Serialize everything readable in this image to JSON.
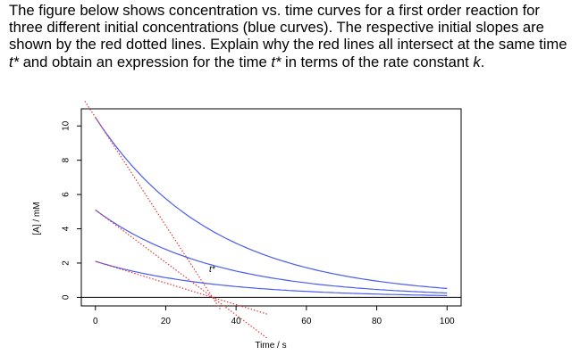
{
  "question": {
    "p1": "The figure below shows concentration vs. time curves for a first order reaction for three different initial concentrations (blue curves).  The respective initial slopes are shown by the red dotted lines.  Explain why the red lines all intersect at the same time ",
    "t1": "t*",
    "p2": " and obtain an expression for the time ",
    "t2": "t*",
    "p3": " in terms of the rate constant ",
    "k": "k",
    "p4": "."
  },
  "chart_data": {
    "type": "line",
    "xlabel": "Time / s",
    "ylabel": "[A] / mM",
    "xlim": [
      -4,
      104
    ],
    "ylim": [
      -0.5,
      11
    ],
    "x_ticks": [
      "0",
      "20",
      "40",
      "60",
      "80",
      "100"
    ],
    "y_ticks": [
      "0",
      "2",
      "4",
      "6",
      "8",
      "10"
    ],
    "annotation": "t*",
    "t_star": 33.3,
    "series": [
      {
        "kind": "exponential-decay",
        "x": [
          0,
          100
        ],
        "A0": 10.5,
        "color": "#4a5cf0"
      },
      {
        "kind": "exponential-decay",
        "x": [
          0,
          100
        ],
        "A0": 5.1,
        "color": "#4a5cf0"
      },
      {
        "kind": "exponential-decay",
        "x": [
          0,
          100
        ],
        "A0": 2.1,
        "color": "#4a5cf0"
      },
      {
        "kind": "initial-slope",
        "x": [
          -3,
          35.5
        ],
        "A0": 10.5,
        "color": "#e03a3a"
      },
      {
        "kind": "initial-slope",
        "x": [
          0,
          49
        ],
        "A0": 5.1,
        "color": "#e03a3a"
      },
      {
        "kind": "initial-slope",
        "x": [
          0,
          49
        ],
        "A0": 2.1,
        "color": "#e03a3a"
      }
    ],
    "baseline_y": 0
  }
}
